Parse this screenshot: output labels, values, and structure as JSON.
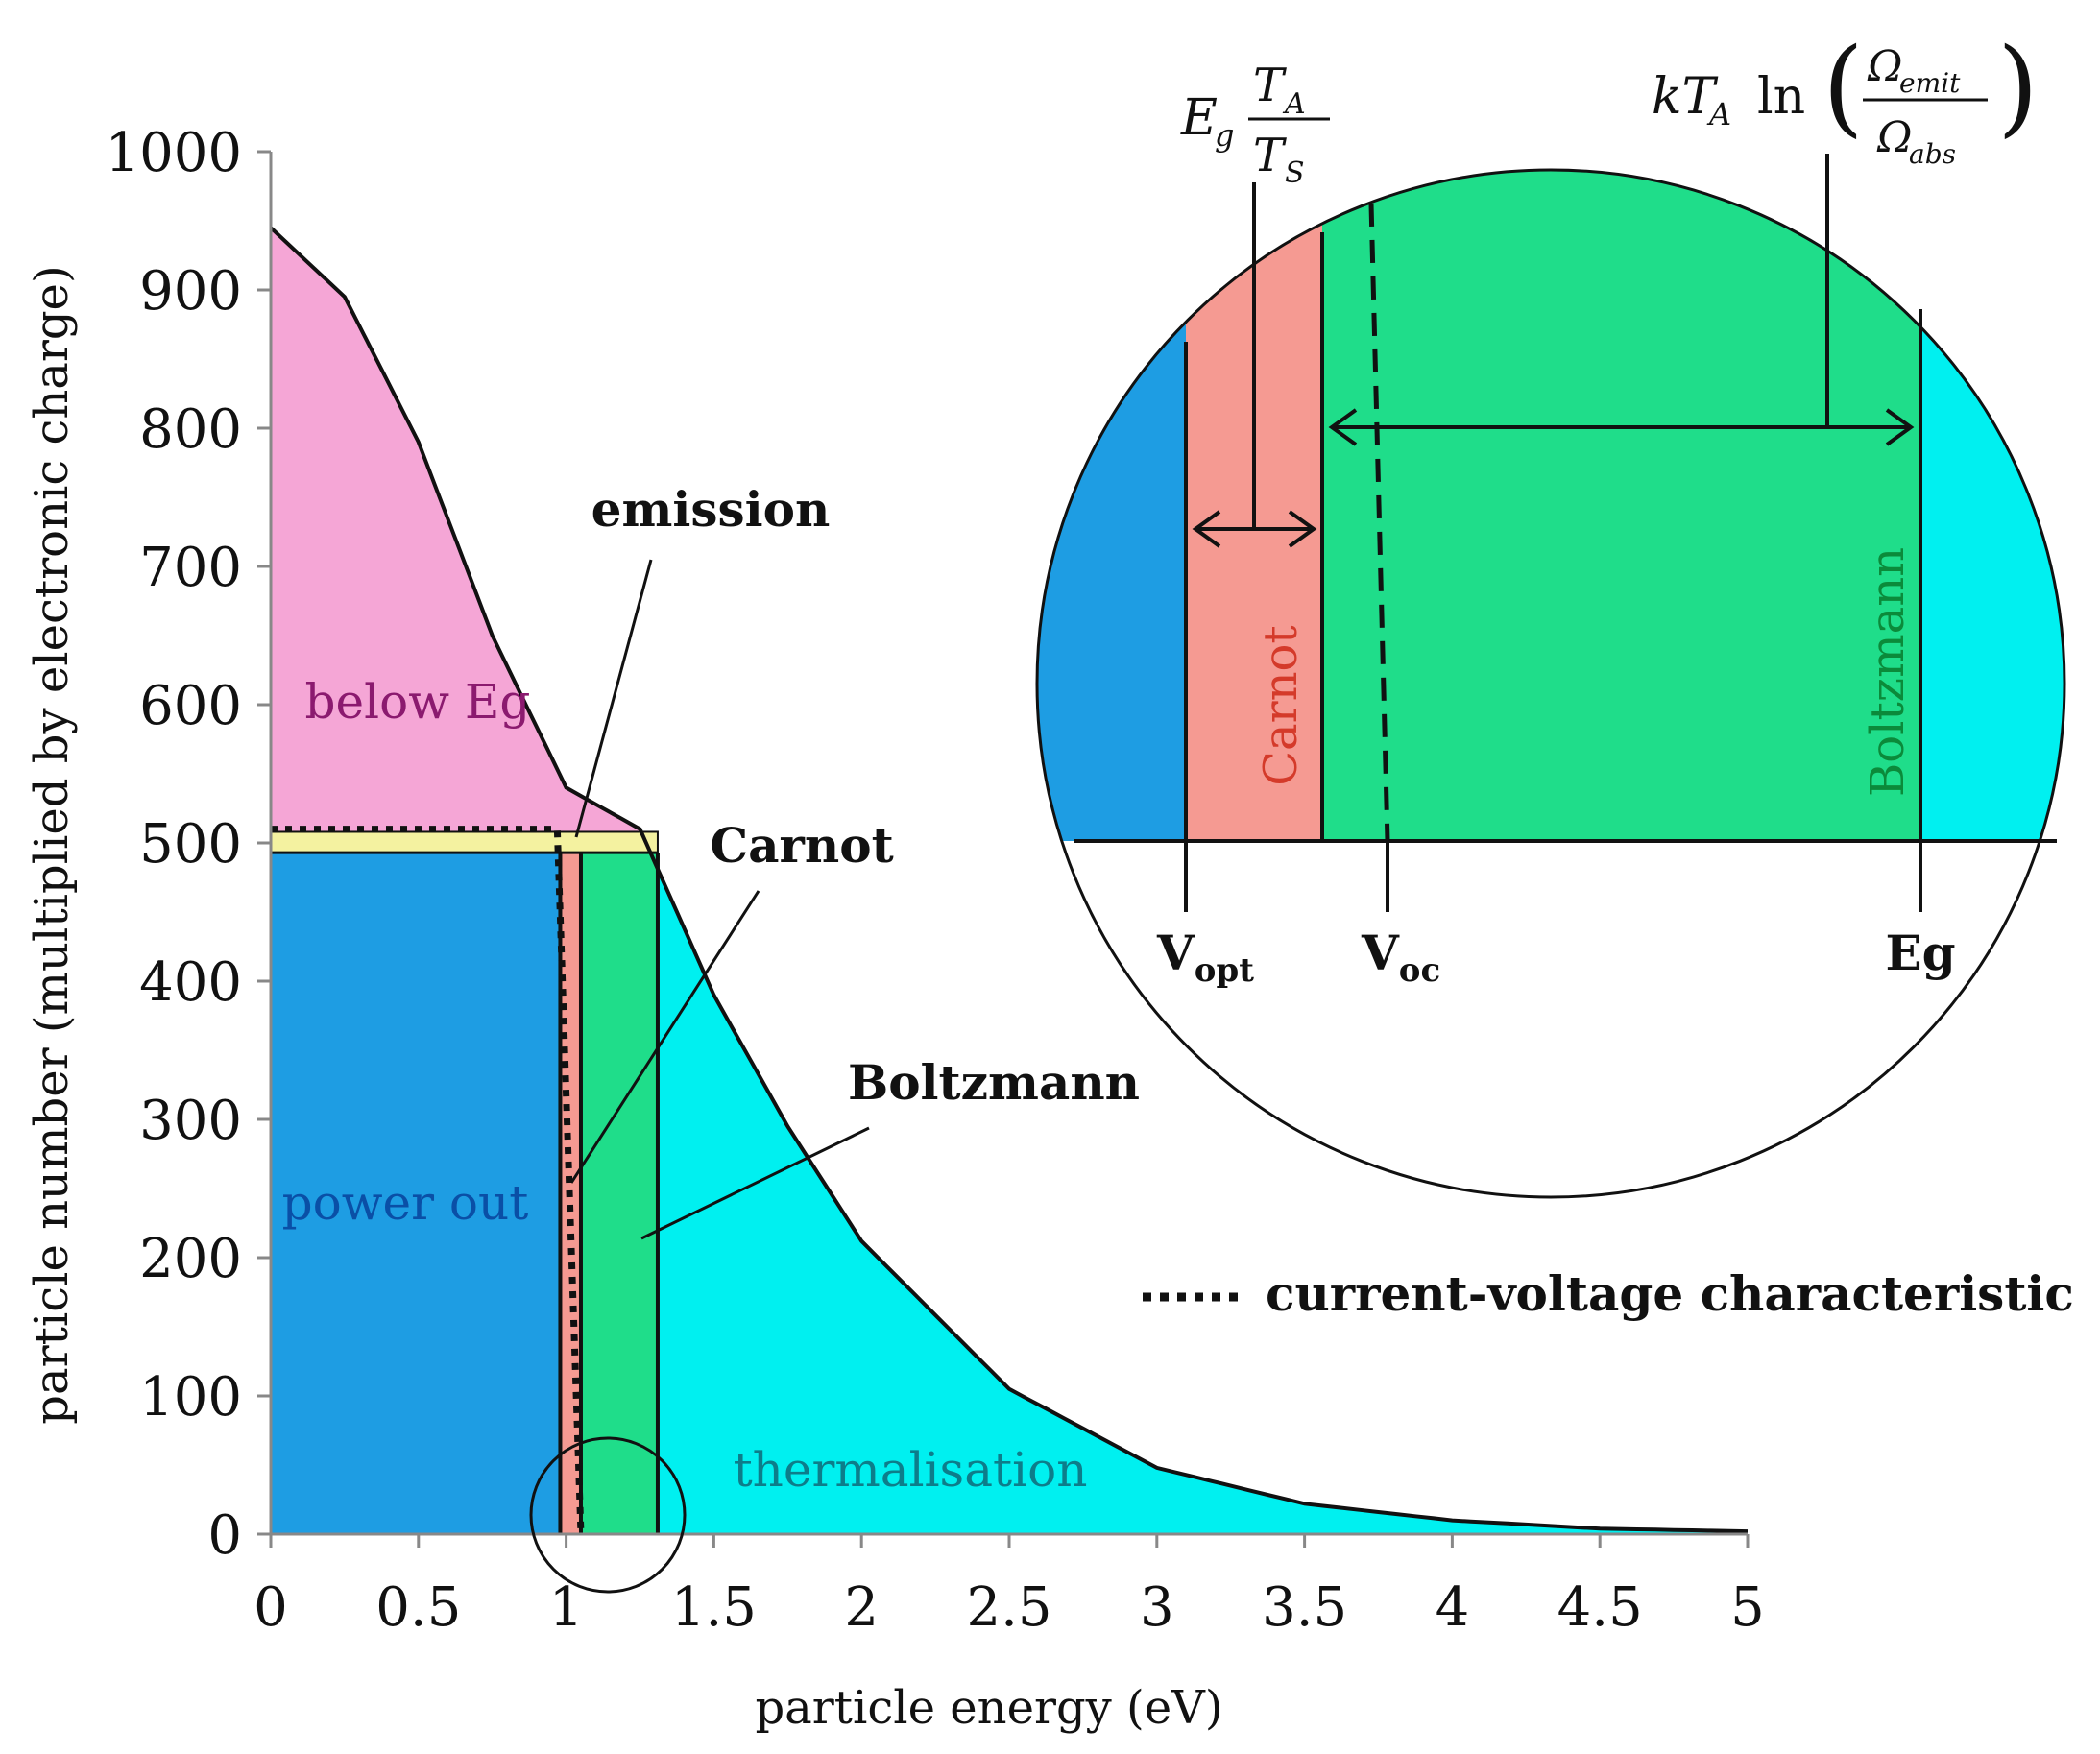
{
  "chart_data": {
    "type": "area",
    "xlabel": "particle energy (eV)",
    "ylabel": "particle number (multiplied by electronic charge)",
    "xlim": [
      0,
      5
    ],
    "ylim": [
      0,
      1000
    ],
    "x_ticks": [
      "0",
      "0.5",
      "1",
      "1.5",
      "2",
      "2.5",
      "3",
      "3.5",
      "4",
      "4.5",
      "5"
    ],
    "y_ticks": [
      "0",
      "100",
      "200",
      "300",
      "400",
      "500",
      "600",
      "700",
      "800",
      "900",
      "1000"
    ],
    "curve": {
      "x": [
        0,
        0.25,
        0.5,
        0.75,
        1.0,
        1.25,
        1.5,
        1.75,
        2.0,
        2.5,
        3.0,
        3.5,
        4.0,
        4.5,
        5.0
      ],
      "y": [
        945,
        895,
        790,
        650,
        540,
        510,
        390,
        295,
        212,
        105,
        48,
        22,
        10,
        4,
        2
      ]
    },
    "bandgap_eV": 1.31,
    "carnot_eV": [
      1.0,
      1.05
    ],
    "v_opt_eV": 0.97,
    "v_oc_eV": 1.05,
    "current_level": 493,
    "emission_band": [
      493,
      508
    ],
    "regions": [
      {
        "label": "below Eg",
        "color": "#f5a6d6"
      },
      {
        "label": "power out",
        "color": "#1e9de3"
      },
      {
        "label": "Carnot",
        "color": "#f59a92"
      },
      {
        "label": "Boltzmann",
        "color": "#1fdd8a"
      },
      {
        "label": "thermalisation",
        "color": "#00f0f0"
      },
      {
        "label": "emission",
        "color": "#f4f2a0"
      }
    ],
    "annotations": {
      "emission": "emission",
      "carnot": "Carnot",
      "boltzmann": "Boltzmann",
      "legend_iv": "current-voltage characteristic"
    },
    "inset": {
      "label_vopt": "V",
      "label_vopt_sub": "opt",
      "label_voc": "V",
      "label_voc_sub": "oc",
      "label_eg": "Eg",
      "label_carnot": "Carnot",
      "label_boltzmann": "Boltzmann"
    }
  }
}
